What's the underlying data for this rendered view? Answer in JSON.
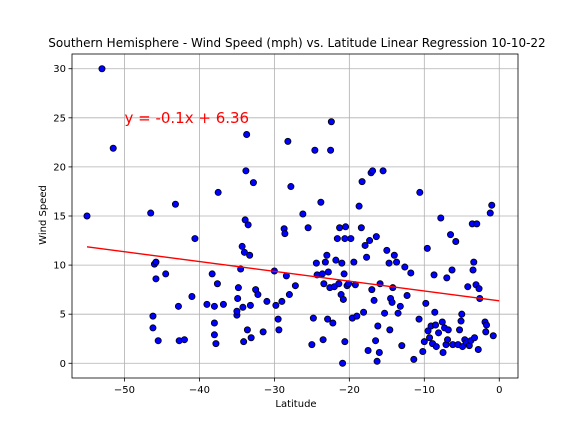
{
  "chart_data": {
    "type": "scatter",
    "title": "Southern Hemisphere - Wind Speed (mph) vs. Latitude Linear Regression 10-10-22",
    "xlabel": "Latitude",
    "ylabel": "Wind Speed",
    "xlim": [
      -57,
      2.5
    ],
    "ylim": [
      -1.5,
      31.5
    ],
    "xticks": [
      -50,
      -40,
      -30,
      -20,
      -10,
      0
    ],
    "yticks": [
      0,
      5,
      10,
      15,
      20,
      25,
      30
    ],
    "grid": true,
    "point_color": "#0000ff",
    "point_edge_color": "#000000",
    "line_color": "#ff0000",
    "regression": {
      "slope": -0.1,
      "intercept": 6.36,
      "x_start": -55,
      "x_end": 0
    },
    "annotation": {
      "text": "y = -0.1x + 6.36",
      "x": -50,
      "y": 25,
      "color": "#ff0000"
    },
    "points": [
      [
        -55,
        15
      ],
      [
        -53,
        30
      ],
      [
        -51.5,
        21.9
      ],
      [
        -46.5,
        15.3
      ],
      [
        -46.2,
        4.8
      ],
      [
        -46.2,
        3.6
      ],
      [
        -46,
        10.1
      ],
      [
        -45.8,
        10.3
      ],
      [
        -45.8,
        8.6
      ],
      [
        -45.5,
        2.3
      ],
      [
        -44.5,
        9.1
      ],
      [
        -43.2,
        16.2
      ],
      [
        -42.8,
        5.8
      ],
      [
        -42.7,
        2.3
      ],
      [
        -42,
        2.4
      ],
      [
        -41,
        6.8
      ],
      [
        -40.6,
        12.7
      ],
      [
        -39,
        6
      ],
      [
        -38.3,
        9.1
      ],
      [
        -38,
        5.8
      ],
      [
        -38,
        4.1
      ],
      [
        -38,
        2.9
      ],
      [
        -37.8,
        2
      ],
      [
        -37.6,
        8.1
      ],
      [
        -37.5,
        17.4
      ],
      [
        -36.8,
        6
      ],
      [
        -35,
        4.9
      ],
      [
        -35,
        5.3
      ],
      [
        -34.9,
        6.6
      ],
      [
        -34.8,
        7.7
      ],
      [
        -34.5,
        9.6
      ],
      [
        -34.3,
        11.9
      ],
      [
        -34.2,
        5.7
      ],
      [
        -34.1,
        2.2
      ],
      [
        -34,
        11.3
      ],
      [
        -33.9,
        14.6
      ],
      [
        -33.8,
        19.6
      ],
      [
        -33.7,
        23.3
      ],
      [
        -33.6,
        3.4
      ],
      [
        -33.5,
        14.1
      ],
      [
        -33.3,
        11
      ],
      [
        -33.2,
        5.9
      ],
      [
        -33.1,
        2.6
      ],
      [
        -32.8,
        18.4
      ],
      [
        -32.5,
        7.5
      ],
      [
        -32.2,
        7
      ],
      [
        -31.5,
        3.2
      ],
      [
        -31,
        6.3
      ],
      [
        -30,
        9.4
      ],
      [
        -29.8,
        5.9
      ],
      [
        -29.5,
        4.5
      ],
      [
        -29.4,
        3.4
      ],
      [
        -29,
        6.3
      ],
      [
        -28.7,
        13.7
      ],
      [
        -28.6,
        13.2
      ],
      [
        -28.4,
        8.9
      ],
      [
        -28.2,
        22.6
      ],
      [
        -28,
        7
      ],
      [
        -27.8,
        18
      ],
      [
        -27.2,
        7.9
      ],
      [
        -26.2,
        15.2
      ],
      [
        -25.5,
        13.8
      ],
      [
        -25,
        1.9
      ],
      [
        -24.8,
        4.6
      ],
      [
        -24.6,
        21.7
      ],
      [
        -24.4,
        10.2
      ],
      [
        -24.3,
        9
      ],
      [
        -23.8,
        16.4
      ],
      [
        -23.6,
        9.1
      ],
      [
        -23.5,
        2.4
      ],
      [
        -23.4,
        8.1
      ],
      [
        -23.2,
        10.3
      ],
      [
        -23,
        11
      ],
      [
        -22.9,
        4.5
      ],
      [
        -22.8,
        9.3
      ],
      [
        -22.6,
        7.7
      ],
      [
        -22.5,
        21.7
      ],
      [
        -22.4,
        24.6
      ],
      [
        -22.2,
        4.1
      ],
      [
        -22,
        7.8
      ],
      [
        -21.8,
        10.5
      ],
      [
        -21.6,
        12.7
      ],
      [
        -21.4,
        8.1
      ],
      [
        -21.3,
        13.8
      ],
      [
        -21.1,
        7
      ],
      [
        -21,
        10.2
      ],
      [
        -20.9,
        0
      ],
      [
        -20.8,
        6.5
      ],
      [
        -20.7,
        9.1
      ],
      [
        -20.6,
        2.2
      ],
      [
        -20.6,
        12.7
      ],
      [
        -20.5,
        13.9
      ],
      [
        -20.3,
        7.9
      ],
      [
        -20.1,
        8.1
      ],
      [
        -19.8,
        12.7
      ],
      [
        -19.6,
        4.6
      ],
      [
        -19.4,
        10.3
      ],
      [
        -19.2,
        8
      ],
      [
        -19,
        4.8
      ],
      [
        -18.7,
        16
      ],
      [
        -18.4,
        13.8
      ],
      [
        -18.3,
        18.5
      ],
      [
        -18.1,
        5.2
      ],
      [
        -17.9,
        12
      ],
      [
        -17.7,
        10.8
      ],
      [
        -17.5,
        1.3
      ],
      [
        -17.3,
        12.5
      ],
      [
        -17.1,
        19.4
      ],
      [
        -17,
        7.5
      ],
      [
        -16.9,
        19.6
      ],
      [
        -16.7,
        6.4
      ],
      [
        -16.5,
        2.3
      ],
      [
        -16.4,
        12.9
      ],
      [
        -16.3,
        0.2
      ],
      [
        -16.2,
        3.8
      ],
      [
        -16,
        1.1
      ],
      [
        -15.9,
        8.1
      ],
      [
        -15.5,
        19.6
      ],
      [
        -15.3,
        5.1
      ],
      [
        -15,
        11.5
      ],
      [
        -14.7,
        10.2
      ],
      [
        -14.6,
        3.4
      ],
      [
        -14.5,
        6.6
      ],
      [
        -14.3,
        6.2
      ],
      [
        -14.2,
        7.7
      ],
      [
        -14,
        11
      ],
      [
        -13.7,
        10.3
      ],
      [
        -13.5,
        5.1
      ],
      [
        -13.2,
        5.8
      ],
      [
        -13,
        1.8
      ],
      [
        -12.6,
        9.8
      ],
      [
        -12.3,
        6.9
      ],
      [
        -11.8,
        9.2
      ],
      [
        -11.4,
        0.4
      ],
      [
        -10.7,
        4.5
      ],
      [
        -10.6,
        17.4
      ],
      [
        -10.2,
        1.2
      ],
      [
        -10,
        2.2
      ],
      [
        -9.8,
        6.1
      ],
      [
        -9.6,
        11.7
      ],
      [
        -9.5,
        3.3
      ],
      [
        -9.3,
        2.6
      ],
      [
        -9.1,
        3.8
      ],
      [
        -8.9,
        2
      ],
      [
        -8.7,
        9
      ],
      [
        -8.6,
        5.2
      ],
      [
        -8.5,
        3.9
      ],
      [
        -8.4,
        1.7
      ],
      [
        -8.1,
        3.1
      ],
      [
        -7.8,
        14.8
      ],
      [
        -7.6,
        4.2
      ],
      [
        -7.5,
        1.1
      ],
      [
        -7.3,
        3.6
      ],
      [
        -7.1,
        1.9
      ],
      [
        -7,
        8.7
      ],
      [
        -6.9,
        2.4
      ],
      [
        -6.8,
        3.4
      ],
      [
        -6.5,
        13.1
      ],
      [
        -6.3,
        9.5
      ],
      [
        -6.2,
        1.9
      ],
      [
        -5.8,
        12.4
      ],
      [
        -5.5,
        1.9
      ],
      [
        -5.3,
        3.4
      ],
      [
        -5.1,
        4.3
      ],
      [
        -5,
        5
      ],
      [
        -4.9,
        1.7
      ],
      [
        -4.6,
        2.4
      ],
      [
        -4.4,
        2.1
      ],
      [
        -4.2,
        7.8
      ],
      [
        -4,
        1.8
      ],
      [
        -3.8,
        2.3
      ],
      [
        -3.6,
        14.2
      ],
      [
        -3.5,
        9.5
      ],
      [
        -3.4,
        10.3
      ],
      [
        -3.3,
        2.6
      ],
      [
        -3.1,
        8
      ],
      [
        -3,
        14.2
      ],
      [
        -2.8,
        1.4
      ],
      [
        -2.7,
        7.6
      ],
      [
        -2.6,
        6.6
      ],
      [
        -1.9,
        4.2
      ],
      [
        -1.8,
        3.2
      ],
      [
        -1.7,
        3.9
      ],
      [
        -1.2,
        15.3
      ],
      [
        -1,
        16.1
      ],
      [
        -0.8,
        2.8
      ]
    ]
  }
}
